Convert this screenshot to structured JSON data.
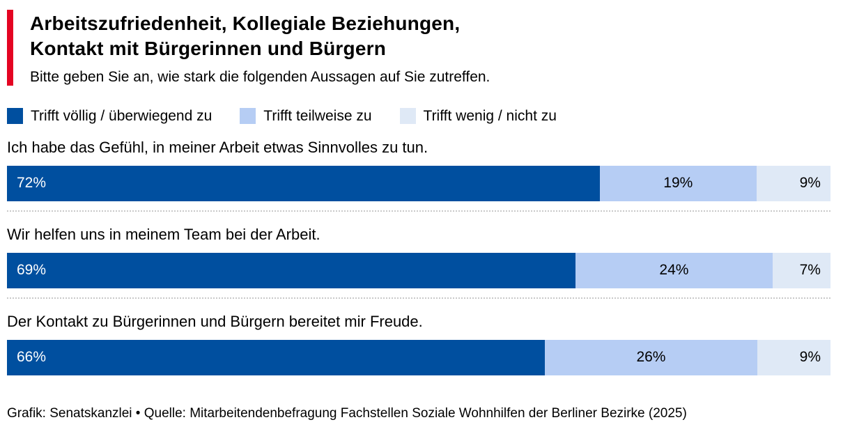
{
  "colors": {
    "accent": "#e40422",
    "agree": "#004f9f",
    "partial": "#b6cdf4",
    "disagree": "#dfe9f6",
    "divider": "#c9c9c9",
    "text": "#000000"
  },
  "header": {
    "title_lines": [
      "Arbeitszufriedenheit, Kollegiale Beziehungen,",
      "Kontakt mit Bürgerinnen und Bürgern"
    ],
    "subtitle": "Bitte geben Sie an, wie stark die folgenden Aussagen auf Sie zutreffen."
  },
  "legend": [
    {
      "label": "Trifft völlig / überwiegend zu",
      "color": "#004f9f"
    },
    {
      "label": "Trifft teilweise zu",
      "color": "#b6cdf4"
    },
    {
      "label": "Trifft wenig / nicht zu",
      "color": "#dfe9f6"
    }
  ],
  "chart_data": {
    "type": "bar",
    "orientation": "horizontal",
    "stacked": true,
    "unit": "%",
    "title": "Arbeitszufriedenheit, Kollegiale Beziehungen, Kontakt mit Bürgerinnen und Bürgern",
    "subtitle": "Bitte geben Sie an, wie stark die folgenden Aussagen auf Sie zutreffen.",
    "legend_position": "top",
    "xlim": [
      0,
      100
    ],
    "categories": [
      "Ich habe das Gefühl, in meiner Arbeit etwas Sinnvolles zu tun.",
      "Wir helfen uns in meinem Team bei der Arbeit.",
      "Der Kontakt zu Bürgerinnen und Bürgern bereitet mir Freude."
    ],
    "series": [
      {
        "name": "Trifft völlig / überwiegend zu",
        "color": "#004f9f",
        "values": [
          72,
          69,
          66
        ]
      },
      {
        "name": "Trifft teilweise zu",
        "color": "#b6cdf4",
        "values": [
          19,
          24,
          26
        ]
      },
      {
        "name": "Trifft wenig / nicht zu",
        "color": "#dfe9f6",
        "values": [
          9,
          7,
          9
        ]
      }
    ],
    "value_labels": [
      [
        "72%",
        "19%",
        "9%"
      ],
      [
        "69%",
        "24%",
        "7%"
      ],
      [
        "66%",
        "26%",
        "9%"
      ]
    ]
  },
  "footer": {
    "credit": "Grafik: Senatskanzlei • Quelle: Mitarbeitendenbefragung Fachstellen Soziale Wohnhilfen der Berliner Bezirke (2025)"
  }
}
